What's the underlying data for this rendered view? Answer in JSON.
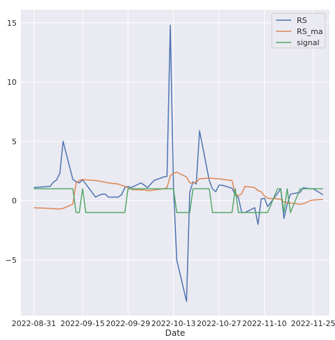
{
  "chart_data": {
    "type": "line",
    "title": "",
    "xlabel": "Date",
    "ylabel": "",
    "xlim": [
      "2022-08-27",
      "2022-11-30"
    ],
    "ylim": [
      -9.7,
      16.1
    ],
    "x_ticks": [
      "2022-08-31",
      "2022-09-15",
      "2022-09-29",
      "2022-10-13",
      "2022-10-27",
      "2022-11-10",
      "2022-11-25"
    ],
    "y_ticks": [
      -5,
      0,
      5,
      10,
      15
    ],
    "y_tick_labels": [
      "−5",
      "0",
      "5",
      "10",
      "15"
    ],
    "grid": true,
    "background": "#eaeaf2",
    "legend_position": "top-right",
    "series": [
      {
        "name": "RS",
        "color": "#4c72b0",
        "points": [
          [
            "2022-08-31",
            1.1
          ],
          [
            "2022-09-02",
            1.15
          ],
          [
            "2022-09-05",
            1.2
          ],
          [
            "2022-09-06",
            1.55
          ],
          [
            "2022-09-07",
            1.75
          ],
          [
            "2022-09-08",
            2.3
          ],
          [
            "2022-09-09",
            5.0
          ],
          [
            "2022-09-12",
            1.8
          ],
          [
            "2022-09-13",
            1.6
          ],
          [
            "2022-09-14",
            1.5
          ],
          [
            "2022-09-15",
            1.75
          ],
          [
            "2022-09-16",
            1.4
          ],
          [
            "2022-09-19",
            0.3
          ],
          [
            "2022-09-20",
            0.45
          ],
          [
            "2022-09-21",
            0.55
          ],
          [
            "2022-09-22",
            0.55
          ],
          [
            "2022-09-23",
            0.3
          ],
          [
            "2022-09-26",
            0.3
          ],
          [
            "2022-09-27",
            0.5
          ],
          [
            "2022-09-28",
            1.1
          ],
          [
            "2022-09-29",
            1.2
          ],
          [
            "2022-09-30",
            1.1
          ],
          [
            "2022-10-03",
            1.5
          ],
          [
            "2022-10-04",
            1.3
          ],
          [
            "2022-10-05",
            1.1
          ],
          [
            "2022-10-06",
            1.4
          ],
          [
            "2022-10-07",
            1.7
          ],
          [
            "2022-10-10",
            2.0
          ],
          [
            "2022-10-11",
            2.05
          ],
          [
            "2022-10-12",
            14.8
          ],
          [
            "2022-10-13",
            1.0
          ],
          [
            "2022-10-14",
            -5.0
          ],
          [
            "2022-10-17",
            -8.5
          ],
          [
            "2022-10-18",
            0.7
          ],
          [
            "2022-10-19",
            1.6
          ],
          [
            "2022-10-20",
            1.4
          ],
          [
            "2022-10-21",
            5.9
          ],
          [
            "2022-10-24",
            1.7
          ],
          [
            "2022-10-25",
            1.0
          ],
          [
            "2022-10-26",
            0.75
          ],
          [
            "2022-10-27",
            1.3
          ],
          [
            "2022-10-28",
            1.3
          ],
          [
            "2022-10-31",
            1.05
          ],
          [
            "2022-11-01",
            0.5
          ],
          [
            "2022-11-02",
            0.25
          ],
          [
            "2022-11-03",
            -1.0
          ],
          [
            "2022-11-04",
            -1.0
          ],
          [
            "2022-11-07",
            -0.6
          ],
          [
            "2022-11-08",
            -2.0
          ],
          [
            "2022-11-09",
            0.15
          ],
          [
            "2022-11-10",
            0.2
          ],
          [
            "2022-11-11",
            -0.5
          ],
          [
            "2022-11-14",
            0.6
          ],
          [
            "2022-11-15",
            1.0
          ],
          [
            "2022-11-16",
            -1.5
          ],
          [
            "2022-11-17",
            -0.3
          ],
          [
            "2022-11-18",
            0.55
          ],
          [
            "2022-11-21",
            0.7
          ],
          [
            "2022-11-22",
            1.1
          ],
          [
            "2022-11-23",
            1.05
          ],
          [
            "2022-11-24",
            1.0
          ],
          [
            "2022-11-25",
            1.0
          ],
          [
            "2022-11-28",
            0.5
          ]
        ]
      },
      {
        "name": "RS_ma",
        "color": "#dd8452",
        "points": [
          [
            "2022-08-31",
            -0.6
          ],
          [
            "2022-09-02",
            -0.62
          ],
          [
            "2022-09-05",
            -0.65
          ],
          [
            "2022-09-06",
            -0.67
          ],
          [
            "2022-09-07",
            -0.7
          ],
          [
            "2022-09-08",
            -0.7
          ],
          [
            "2022-09-09",
            -0.65
          ],
          [
            "2022-09-12",
            -0.3
          ],
          [
            "2022-09-13",
            1.5
          ],
          [
            "2022-09-14",
            1.7
          ],
          [
            "2022-09-15",
            1.8
          ],
          [
            "2022-09-16",
            1.75
          ],
          [
            "2022-09-19",
            1.7
          ],
          [
            "2022-09-20",
            1.65
          ],
          [
            "2022-09-21",
            1.6
          ],
          [
            "2022-09-22",
            1.55
          ],
          [
            "2022-09-23",
            1.5
          ],
          [
            "2022-09-26",
            1.4
          ],
          [
            "2022-09-27",
            1.3
          ],
          [
            "2022-09-28",
            1.2
          ],
          [
            "2022-09-29",
            1.1
          ],
          [
            "2022-09-30",
            0.95
          ],
          [
            "2022-10-03",
            0.9
          ],
          [
            "2022-10-04",
            0.9
          ],
          [
            "2022-10-05",
            0.85
          ],
          [
            "2022-10-06",
            0.85
          ],
          [
            "2022-10-07",
            0.9
          ],
          [
            "2022-10-10",
            1.0
          ],
          [
            "2022-10-11",
            1.1
          ],
          [
            "2022-10-12",
            2.1
          ],
          [
            "2022-10-13",
            2.3
          ],
          [
            "2022-10-14",
            2.4
          ],
          [
            "2022-10-17",
            2.0
          ],
          [
            "2022-10-18",
            1.5
          ],
          [
            "2022-10-19",
            1.5
          ],
          [
            "2022-10-20",
            1.55
          ],
          [
            "2022-10-21",
            1.85
          ],
          [
            "2022-10-24",
            1.9
          ],
          [
            "2022-10-25",
            1.9
          ],
          [
            "2022-10-26",
            1.85
          ],
          [
            "2022-10-27",
            1.85
          ],
          [
            "2022-10-28",
            1.8
          ],
          [
            "2022-10-31",
            1.7
          ],
          [
            "2022-11-01",
            0.6
          ],
          [
            "2022-11-02",
            0.4
          ],
          [
            "2022-11-03",
            0.6
          ],
          [
            "2022-11-04",
            1.2
          ],
          [
            "2022-11-07",
            1.1
          ],
          [
            "2022-11-08",
            0.85
          ],
          [
            "2022-11-09",
            0.75
          ],
          [
            "2022-11-10",
            0.4
          ],
          [
            "2022-11-11",
            0.2
          ],
          [
            "2022-11-14",
            0.15
          ],
          [
            "2022-11-15",
            0.1
          ],
          [
            "2022-11-16",
            -0.1
          ],
          [
            "2022-11-17",
            -0.2
          ],
          [
            "2022-11-18",
            -0.2
          ],
          [
            "2022-11-21",
            -0.3
          ],
          [
            "2022-11-22",
            -0.25
          ],
          [
            "2022-11-23",
            -0.15
          ],
          [
            "2022-11-24",
            0.0
          ],
          [
            "2022-11-25",
            0.05
          ],
          [
            "2022-11-28",
            0.1
          ]
        ]
      },
      {
        "name": "signal",
        "color": "#55a868",
        "points": [
          [
            "2022-08-31",
            1
          ],
          [
            "2022-09-02",
            1
          ],
          [
            "2022-09-05",
            1
          ],
          [
            "2022-09-06",
            1
          ],
          [
            "2022-09-07",
            1
          ],
          [
            "2022-09-08",
            1
          ],
          [
            "2022-09-09",
            1
          ],
          [
            "2022-09-12",
            1
          ],
          [
            "2022-09-13",
            -1
          ],
          [
            "2022-09-14",
            -1
          ],
          [
            "2022-09-15",
            1
          ],
          [
            "2022-09-16",
            -1
          ],
          [
            "2022-09-19",
            -1
          ],
          [
            "2022-09-20",
            -1
          ],
          [
            "2022-09-21",
            -1
          ],
          [
            "2022-09-22",
            -1
          ],
          [
            "2022-09-23",
            -1
          ],
          [
            "2022-09-26",
            -1
          ],
          [
            "2022-09-27",
            -1
          ],
          [
            "2022-09-28",
            -1
          ],
          [
            "2022-09-29",
            1
          ],
          [
            "2022-09-30",
            1
          ],
          [
            "2022-10-03",
            1
          ],
          [
            "2022-10-04",
            1
          ],
          [
            "2022-10-05",
            1
          ],
          [
            "2022-10-06",
            1
          ],
          [
            "2022-10-07",
            1
          ],
          [
            "2022-10-10",
            1
          ],
          [
            "2022-10-11",
            1
          ],
          [
            "2022-10-12",
            1
          ],
          [
            "2022-10-13",
            1
          ],
          [
            "2022-10-14",
            -1
          ],
          [
            "2022-10-17",
            -1
          ],
          [
            "2022-10-18",
            -1
          ],
          [
            "2022-10-19",
            1
          ],
          [
            "2022-10-20",
            1
          ],
          [
            "2022-10-21",
            1
          ],
          [
            "2022-10-24",
            1
          ],
          [
            "2022-10-25",
            -1
          ],
          [
            "2022-10-26",
            -1
          ],
          [
            "2022-10-27",
            -1
          ],
          [
            "2022-10-28",
            -1
          ],
          [
            "2022-10-31",
            -1
          ],
          [
            "2022-11-01",
            1
          ],
          [
            "2022-11-02",
            -1
          ],
          [
            "2022-11-03",
            -1
          ],
          [
            "2022-11-04",
            -1
          ],
          [
            "2022-11-07",
            -1
          ],
          [
            "2022-11-08",
            -1
          ],
          [
            "2022-11-09",
            -1
          ],
          [
            "2022-11-10",
            -1
          ],
          [
            "2022-11-11",
            -1
          ],
          [
            "2022-11-14",
            1
          ],
          [
            "2022-11-15",
            1
          ],
          [
            "2022-11-16",
            -1
          ],
          [
            "2022-11-17",
            1
          ],
          [
            "2022-11-18",
            -1
          ],
          [
            "2022-11-21",
            1
          ],
          [
            "2022-11-22",
            1
          ],
          [
            "2022-11-23",
            1
          ],
          [
            "2022-11-24",
            1
          ],
          [
            "2022-11-25",
            1
          ],
          [
            "2022-11-28",
            1
          ]
        ]
      }
    ]
  }
}
